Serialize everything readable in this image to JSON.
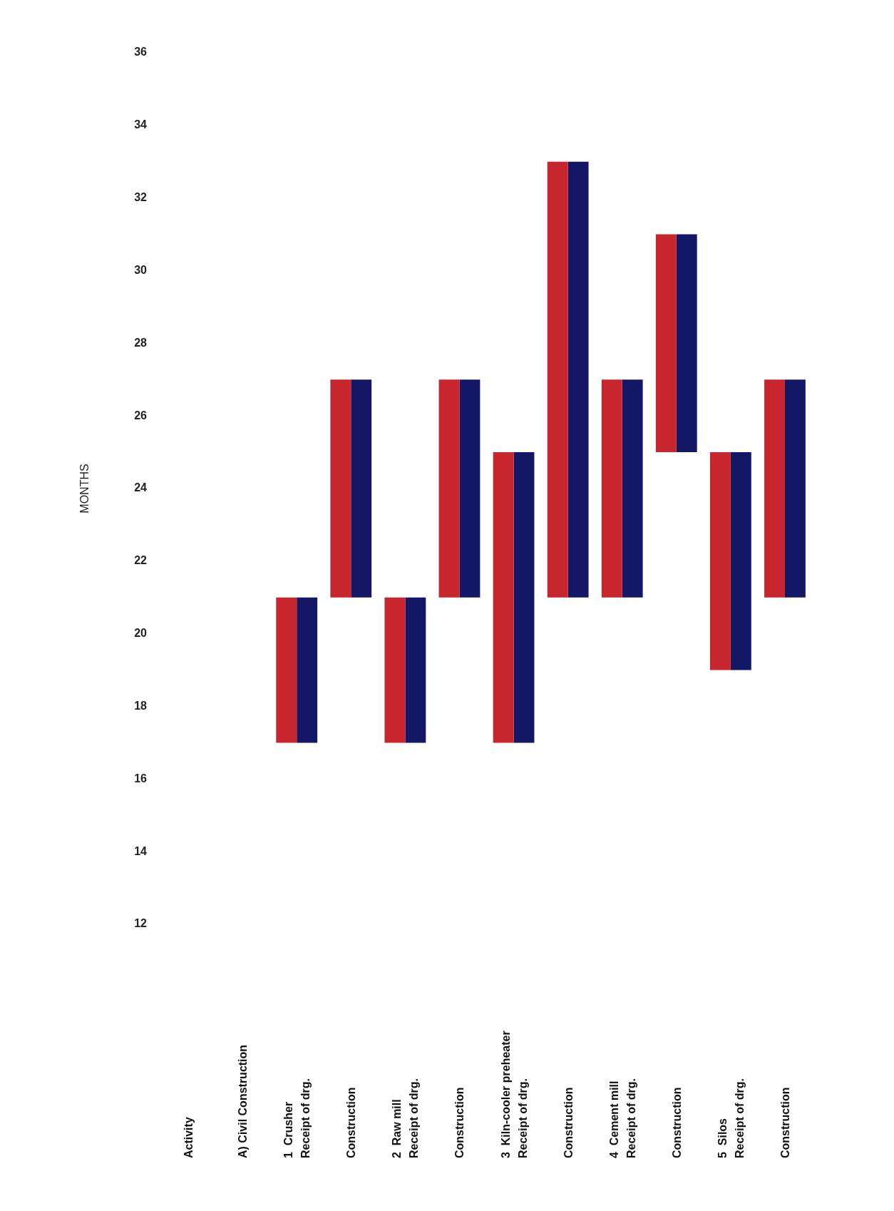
{
  "chart_data": {
    "type": "bar",
    "ylabel": "MONTHS",
    "categories": [
      "Activity",
      "A) Civil Construction",
      "1  Crusher\nReceipt of drg.",
      "Construction",
      "2  Raw mill\nReceipt of drg.",
      "Construction",
      "3  Kiln-cooler preheater\nReceipt of drg.",
      "Construction",
      "4  Cement mill\nReceipt of drg.",
      "Construction",
      "5  Silos\nReceipt of drg.",
      "Construction"
    ],
    "series": [
      {
        "color": "#c8262e",
        "base": [
          null,
          null,
          17,
          21,
          17,
          21,
          17,
          21,
          21,
          25,
          19,
          21
        ],
        "values": [
          null,
          null,
          4,
          6,
          4,
          6,
          8,
          12,
          6,
          6,
          6,
          6
        ]
      },
      {
        "color": "#141766",
        "base": [
          null,
          null,
          17,
          21,
          17,
          21,
          17,
          21,
          21,
          25,
          19,
          21
        ],
        "values": [
          null,
          null,
          4,
          6,
          4,
          6,
          8,
          12,
          6,
          6,
          6,
          6
        ]
      }
    ],
    "ylim": [
      12,
      36
    ],
    "yticks": [
      12,
      14,
      16,
      18,
      20,
      22,
      24,
      26,
      28,
      30,
      32,
      34,
      36
    ],
    "grid": false,
    "legend": false
  }
}
